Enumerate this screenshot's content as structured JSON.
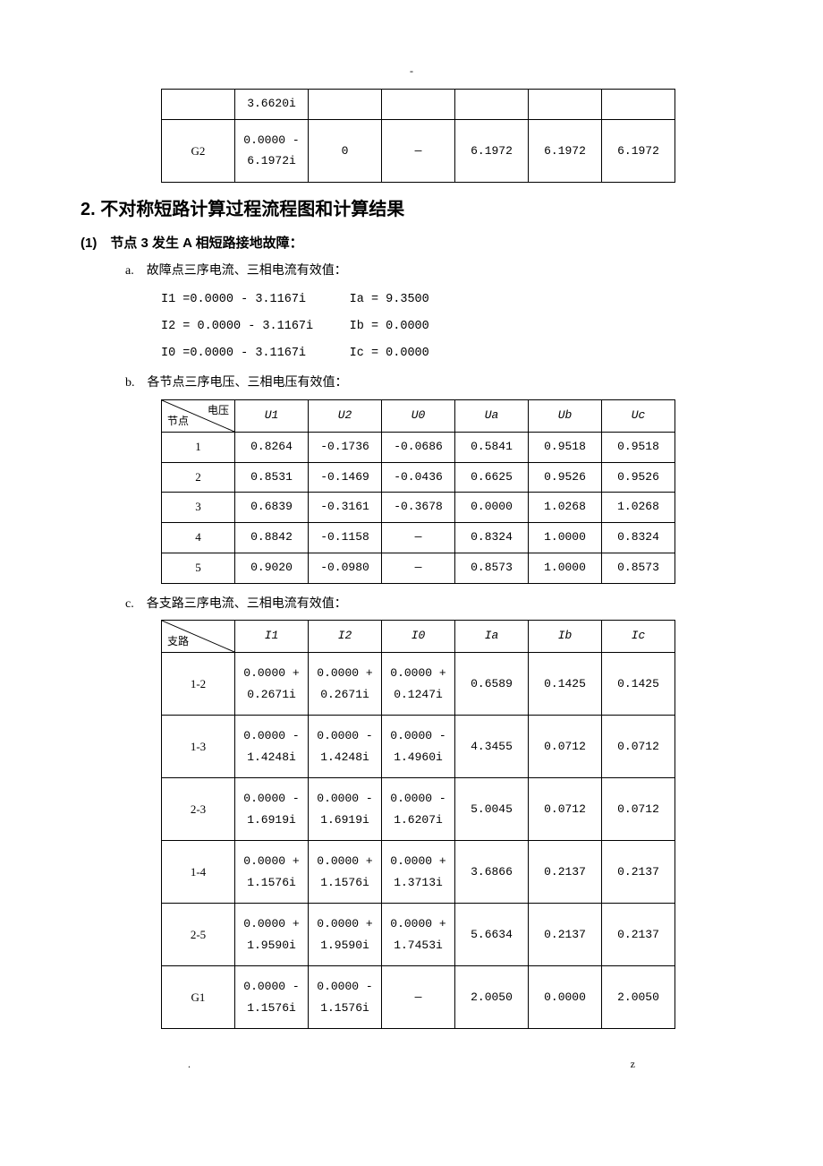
{
  "page_dash": "-",
  "top_table": {
    "rows": [
      {
        "label": "",
        "c1": "3.6620i",
        "c2": "",
        "c3": "",
        "c4": "",
        "c5": "",
        "c6": ""
      },
      {
        "label": "G2",
        "c1": "0.0000 -\n6.1972i",
        "c2": "0",
        "c3": "—",
        "c4": "6.1972",
        "c5": "6.1972",
        "c6": "6.1972"
      }
    ],
    "col_widths": [
      "82px",
      "82px",
      "82px",
      "82px",
      "82px",
      "82px",
      "82px"
    ]
  },
  "section_title": "2. 不对称短路计算过程流程图和计算结果",
  "sub_1": "(1)　节点 3 发生 A 相短路接地故障：",
  "item_a": "a.　故障点三序电流、三相电流有效值：",
  "eq_lines": [
    "I1 =0.0000 - 3.1167i      Ia = 9.3500",
    "I2 = 0.0000 - 3.1167i     Ib = 0.0000",
    "I0 =0.0000 - 3.1167i      Ic = 0.0000"
  ],
  "item_b": "b.　各节点三序电压、三相电压有效值：",
  "voltage_table": {
    "diag_top": "电压",
    "diag_bottom": "节点",
    "headers": [
      "U1",
      "U2",
      "U0",
      "Ua",
      "Ub",
      "Uc"
    ],
    "rows": [
      [
        "1",
        "0.8264",
        "-0.1736",
        "-0.0686",
        "0.5841",
        "0.9518",
        "0.9518"
      ],
      [
        "2",
        "0.8531",
        "-0.1469",
        "-0.0436",
        "0.6625",
        "0.9526",
        "0.9526"
      ],
      [
        "3",
        "0.6839",
        "-0.3161",
        "-0.3678",
        "0.0000",
        "1.0268",
        "1.0268"
      ],
      [
        "4",
        "0.8842",
        "-0.1158",
        "—",
        "0.8324",
        "1.0000",
        "0.8324"
      ],
      [
        "5",
        "0.9020",
        "-0.0980",
        "—",
        "0.8573",
        "1.0000",
        "0.8573"
      ]
    ]
  },
  "item_c": "c.　各支路三序电流、三相电流有效值：",
  "current_table": {
    "diag_top": "",
    "diag_bottom": "支路",
    "headers": [
      "I1",
      "I2",
      "I0",
      "Ia",
      "Ib",
      "Ic"
    ],
    "rows": [
      [
        "1-2",
        "0.0000 +\n0.2671i",
        "0.0000 +\n0.2671i",
        "0.0000 +\n0.1247i",
        "0.6589",
        "0.1425",
        "0.1425"
      ],
      [
        "1-3",
        "0.0000 -\n1.4248i",
        "0.0000 -\n1.4248i",
        "0.0000 -\n1.4960i",
        "4.3455",
        "0.0712",
        "0.0712"
      ],
      [
        "2-3",
        "0.0000 -\n1.6919i",
        "0.0000 -\n1.6919i",
        "0.0000 -\n1.6207i",
        "5.0045",
        "0.0712",
        "0.0712"
      ],
      [
        "1-4",
        "0.0000 +\n1.1576i",
        "0.0000 +\n1.1576i",
        "0.0000 +\n1.3713i",
        "3.6866",
        "0.2137",
        "0.2137"
      ],
      [
        "2-5",
        "0.0000 +\n1.9590i",
        "0.0000 +\n1.9590i",
        "0.0000 +\n1.7453i",
        "5.6634",
        "0.2137",
        "0.2137"
      ],
      [
        "G1",
        "0.0000 -\n1.1576i",
        "0.0000 -\n1.1576i",
        "—",
        "2.0050",
        "0.0000",
        "2.0050"
      ]
    ]
  },
  "footer_left": ".",
  "footer_right": "z"
}
